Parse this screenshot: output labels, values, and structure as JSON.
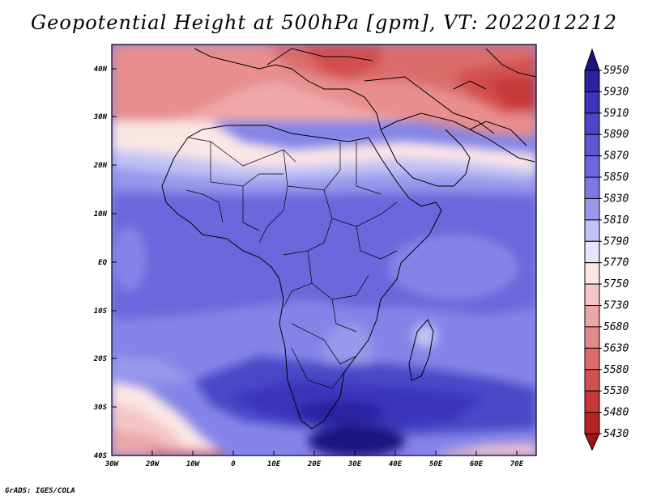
{
  "title": "Geopotential Height at 500hPa [gpm], VT: 2022012212",
  "footer": "GrADS: IGES/COLA",
  "map": {
    "lon_ticks": [
      "30W",
      "20W",
      "10W",
      "0",
      "10E",
      "20E",
      "30E",
      "40E",
      "50E",
      "60E",
      "70E"
    ],
    "lat_ticks": [
      "40N",
      "30N",
      "20N",
      "10N",
      "EQ",
      "10S",
      "20S",
      "30S",
      "40S"
    ],
    "lon_range": [
      -30,
      75
    ],
    "lat_range": [
      -40,
      45
    ]
  },
  "colorbar": {
    "levels": [
      "5950",
      "5930",
      "5910",
      "5890",
      "5870",
      "5850",
      "5830",
      "5810",
      "5790",
      "5770",
      "5750",
      "5730",
      "5680",
      "5630",
      "5580",
      "5530",
      "5480",
      "5430"
    ],
    "colors": [
      "#1a1280",
      "#2a22a0",
      "#3a35bb",
      "#4a48c8",
      "#5a58d2",
      "#6a68dc",
      "#7a7ae4",
      "#9898ec",
      "#c2c2f5",
      "#e6e6fb",
      "#fbe6e6",
      "#f5c6c6",
      "#eda6a6",
      "#e48888",
      "#dc6c6c",
      "#d35050",
      "#c83838",
      "#b52424",
      "#a01515"
    ]
  },
  "colors": {
    "frame": "#000000",
    "coast": "#000000"
  }
}
